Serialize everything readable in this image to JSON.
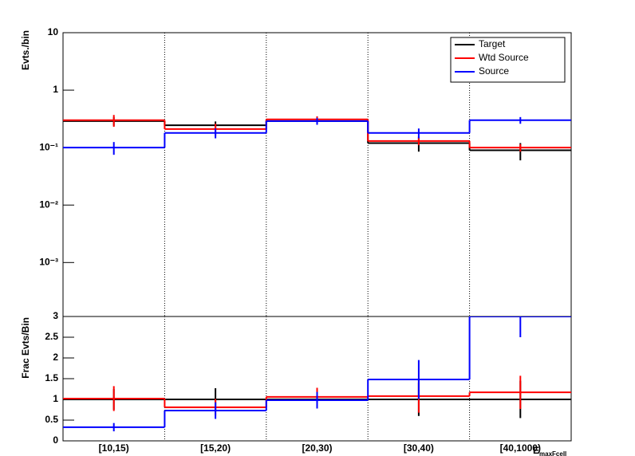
{
  "chart_data": [
    {
      "type": "step",
      "log_y": true,
      "ylabel": "Evts./bin",
      "ylim": [
        0.000115,
        10
      ],
      "yticks": [
        10,
        1,
        {
          "value": 0.1,
          "label": "10⁻¹"
        },
        {
          "value": 0.01,
          "label": "10⁻²"
        },
        {
          "value": 0.001,
          "label": "10⁻³"
        }
      ],
      "legend": "top-right",
      "series": [
        {
          "name": "Target",
          "color": "#000000",
          "values": [
            0.29,
            0.245,
            0.29,
            0.12,
            0.09
          ],
          "errors": [
            0.05,
            0.04,
            0.04,
            0.035,
            0.03
          ]
        },
        {
          "name": "Wtd Source",
          "color": "#ff0000",
          "values": [
            0.3,
            0.21,
            0.31,
            0.13,
            0.1
          ],
          "errors": [
            0.07,
            0.05,
            0.04,
            0.02,
            0.015
          ]
        },
        {
          "name": "Source",
          "color": "#0000ff",
          "values": [
            0.1,
            0.18,
            0.29,
            0.18,
            0.3
          ],
          "errors": [
            0.025,
            0.035,
            0.04,
            0.035,
            0.04
          ]
        }
      ]
    },
    {
      "type": "step",
      "log_y": false,
      "ylabel": "Frac Evts/Bin",
      "xlabel": "E",
      "xlabel_sub": "maxFcell",
      "categories": [
        "[10,15)",
        "[15,20)",
        "[20,30)",
        "[30,40)",
        "[40,1000)"
      ],
      "ylim": [
        0,
        3
      ],
      "yticks": [
        0,
        0.5,
        1,
        1.5,
        2,
        2.5,
        3
      ],
      "series": [
        {
          "name": "Target",
          "color": "#000000",
          "values": [
            1,
            1,
            1,
            1,
            1
          ],
          "errors": [
            0.25,
            0.27,
            0.2,
            0.4,
            0.45
          ]
        },
        {
          "name": "Wtd Source",
          "color": "#ff0000",
          "values": [
            1.02,
            0.81,
            1.06,
            1.08,
            1.17
          ],
          "errors": [
            0.3,
            0.2,
            0.22,
            0.4,
            0.4
          ]
        },
        {
          "name": "Source",
          "color": "#0000ff",
          "values": [
            0.33,
            0.73,
            0.98,
            1.48,
            3
          ],
          "errors": [
            0.1,
            0.2,
            0.2,
            0.47,
            0.5
          ]
        }
      ]
    }
  ]
}
